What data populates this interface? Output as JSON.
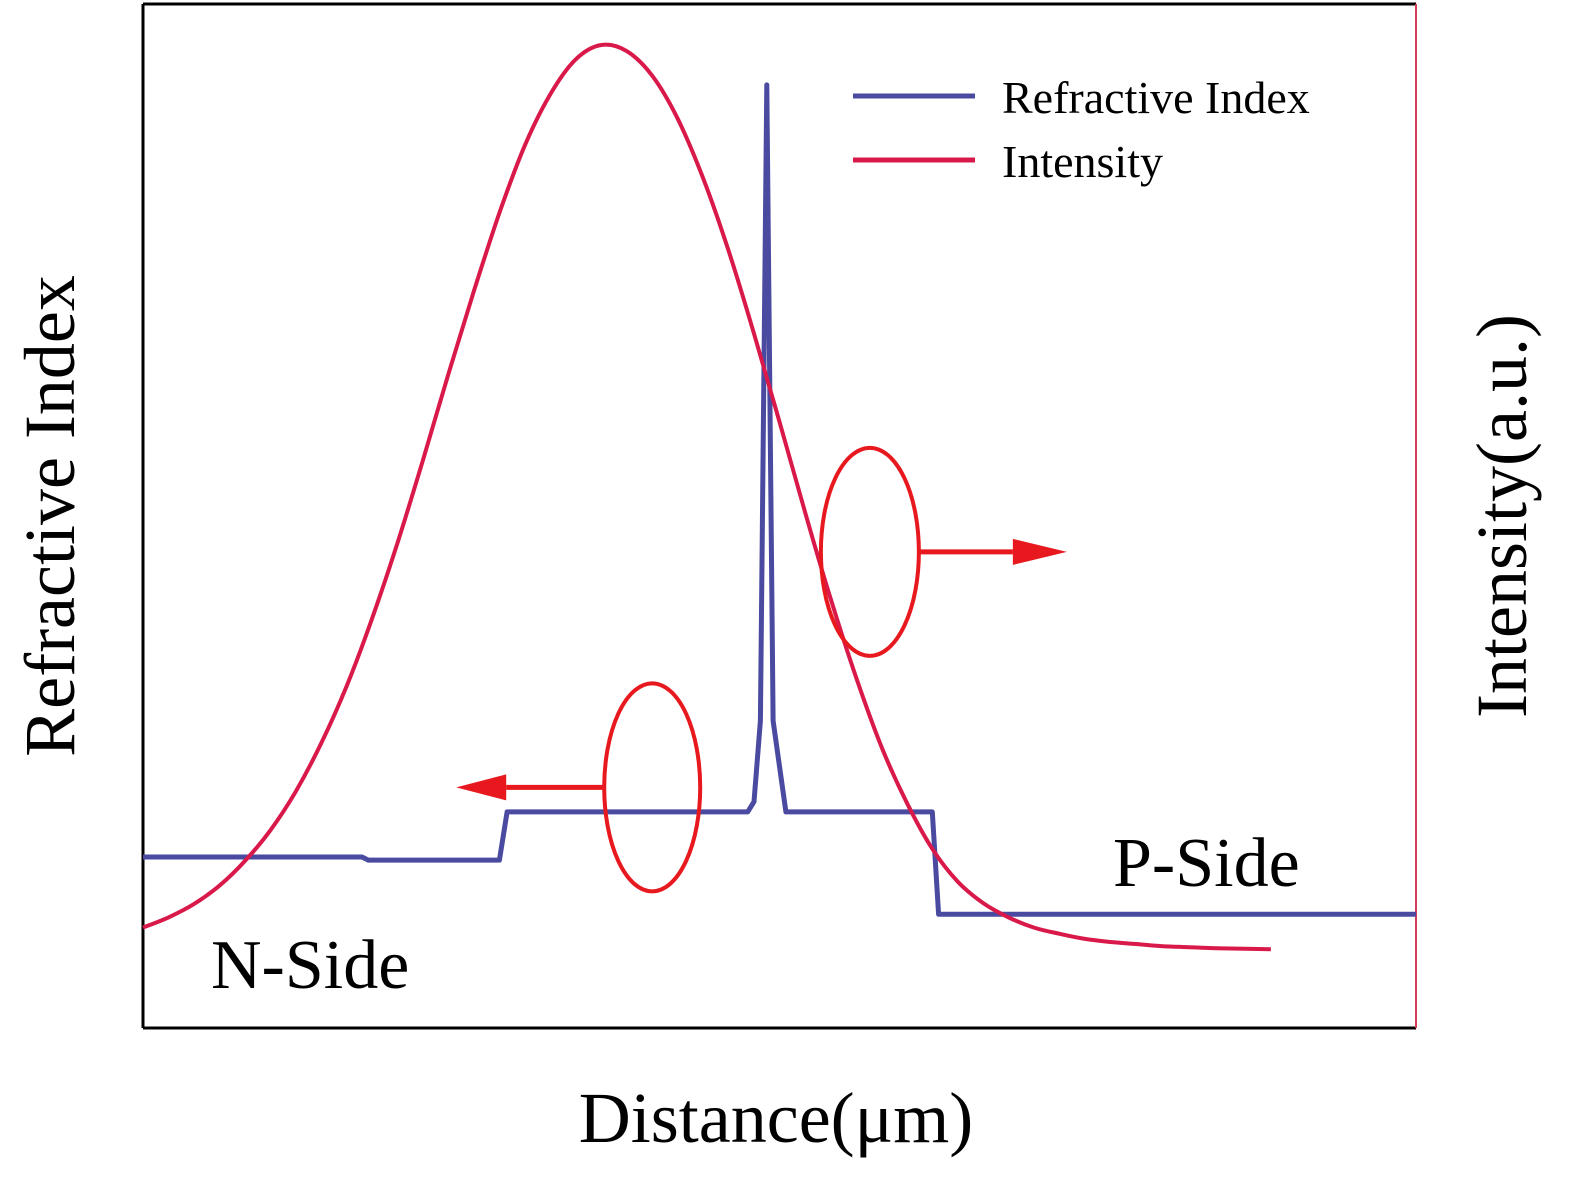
{
  "chart_data": {
    "type": "line",
    "title": "",
    "xlabel": "Distance(μm)",
    "ylabel_left": "Refractive Index",
    "ylabel_right": "Intensity(a.u.)",
    "xlim": [
      0,
      100
    ],
    "ylim": [
      0,
      100
    ],
    "ticks_shown": false,
    "grid": false,
    "legend": {
      "placement": "top-right"
    },
    "series": [
      {
        "name": "Refractive Index",
        "axis": "left",
        "color": "#4a4aa0",
        "x": [
          0,
          17.2,
          17.7,
          28.0,
          28.6,
          47.5,
          48.0,
          48.5,
          49.0,
          49.5,
          50.5,
          62.0,
          62.5,
          100
        ],
        "y": [
          16.7,
          16.7,
          16.4,
          16.4,
          21.1,
          21.1,
          22.1,
          30.0,
          92.1,
          30.0,
          21.1,
          21.1,
          11.1,
          11.1
        ]
      },
      {
        "name": "Intensity",
        "axis": "right",
        "color": "#d9194a",
        "x": [
          0,
          2,
          4,
          6,
          8,
          10,
          12,
          14,
          16,
          18,
          20,
          22,
          24,
          26,
          28,
          30,
          32,
          34,
          36,
          38,
          40,
          42,
          44,
          46,
          48,
          50,
          52,
          54,
          56,
          58,
          60,
          62,
          64,
          66,
          68,
          70,
          72,
          74,
          76,
          78,
          80,
          82,
          84,
          86,
          88.6
        ],
        "y": [
          9.8,
          10.8,
          12.1,
          13.9,
          16.3,
          19.3,
          23.1,
          27.8,
          33.4,
          40.0,
          47.4,
          55.5,
          63.9,
          72.0,
          79.6,
          86.2,
          91.2,
          94.6,
          96.0,
          95.4,
          93.0,
          88.8,
          83.0,
          75.9,
          67.8,
          59.2,
          50.4,
          42.0,
          34.3,
          27.5,
          22.0,
          17.5,
          14.3,
          12.2,
          10.8,
          9.8,
          9.2,
          8.7,
          8.4,
          8.2,
          8.0,
          7.9,
          7.8,
          7.75,
          7.7
        ]
      }
    ],
    "annotations": [
      {
        "text": "N-Side",
        "x": 15,
        "y": 6
      },
      {
        "text": "P-Side",
        "x": 85,
        "y": 16
      },
      {
        "type": "ellipse-arrow",
        "target": "Refractive Index",
        "direction": "left",
        "cx": 40.0,
        "cy": 23.5
      },
      {
        "type": "ellipse-arrow",
        "target": "Intensity",
        "direction": "right",
        "cx": 57.1,
        "cy": 46.5
      }
    ],
    "annotation_color": "#e8191e"
  }
}
